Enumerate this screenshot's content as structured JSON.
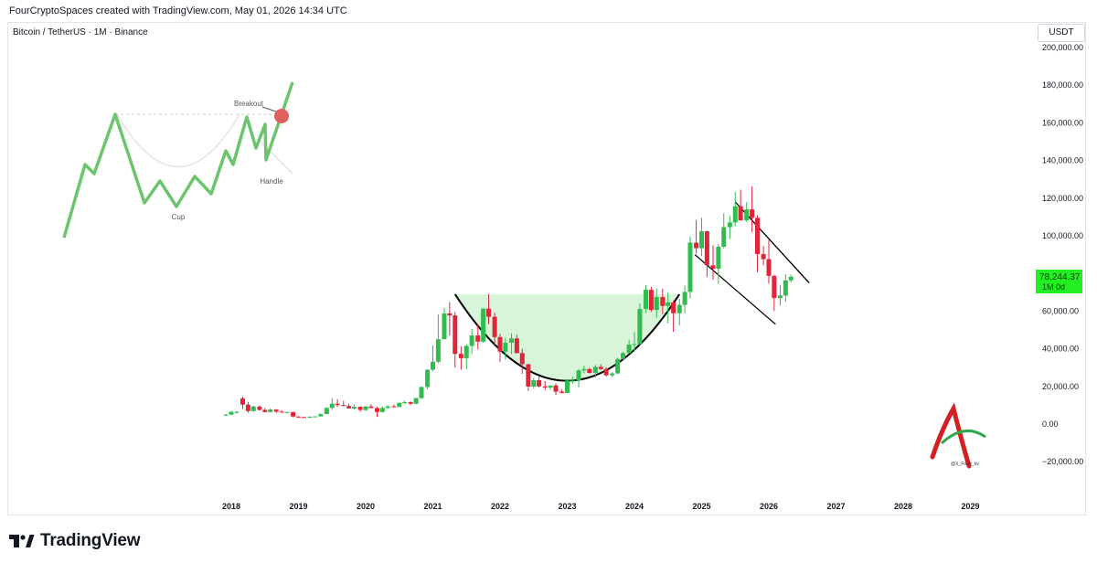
{
  "header": "FourCryptoSpaces created with TradingView.com, May 01, 2026 14:34 UTC",
  "symbol": "Bitcoin / TetherUS · 1M · Binance",
  "currency": "USDT",
  "price_tag": {
    "price": "78,244.37",
    "interval": "1M 0d",
    "color": "#22ee22"
  },
  "brand": {
    "name": "TradingView",
    "icon": "tradingview-logo-icon"
  },
  "watermark": {
    "text": "@X_Fourr_kv",
    "icon": "monogram-logo-icon"
  },
  "colors": {
    "up": "#2ebd4e",
    "down": "#e0243a",
    "cup_fill": "#d9f5d9",
    "inset_line": "#6cc46c",
    "breakout_dot": "#e06060"
  },
  "inset": {
    "breakout": "Breakout",
    "handle": "Handle",
    "cup": "Cup"
  },
  "chart_data": {
    "type": "candlestick",
    "title": "Bitcoin / TetherUS · 1M · Binance",
    "x_axis": {
      "ticks": [
        "2018",
        "2019",
        "2020",
        "2021",
        "2022",
        "2023",
        "2024",
        "2025",
        "2026",
        "2027",
        "2028",
        "2029"
      ]
    },
    "y_axis": {
      "ticks": [
        "200,000.00",
        "180,000.00",
        "160,000.00",
        "140,000.00",
        "120,000.00",
        "100,000.00",
        "80,000.00",
        "60,000.00",
        "40,000.00",
        "20,000.00",
        "0.00",
        "−20,000.00"
      ],
      "range": [
        -20000,
        200000
      ],
      "position": "right"
    },
    "grid": false,
    "series": [
      {
        "values": [
          [
            2017.92,
            4500,
            5500,
            4400,
            5000
          ],
          [
            2018.0,
            5000,
            7000,
            4800,
            6500
          ],
          [
            2018.08,
            6500,
            7000,
            5500,
            6500
          ],
          [
            2018.17,
            13700,
            14500,
            8000,
            10300
          ],
          [
            2018.25,
            10300,
            11800,
            6000,
            6900
          ],
          [
            2018.33,
            6900,
            9800,
            6500,
            9300
          ],
          [
            2018.42,
            9300,
            9900,
            7200,
            7500
          ],
          [
            2018.5,
            7500,
            8500,
            6100,
            6400
          ],
          [
            2018.58,
            6400,
            8300,
            6100,
            7700
          ],
          [
            2018.67,
            7700,
            8000,
            5900,
            6600
          ],
          [
            2018.75,
            6600,
            7400,
            6100,
            6300
          ],
          [
            2018.83,
            6300,
            6600,
            6200,
            6400
          ],
          [
            2018.92,
            6400,
            6500,
            3600,
            4000
          ],
          [
            2019.0,
            4000,
            4200,
            3200,
            3700
          ],
          [
            2019.08,
            3700,
            3900,
            3400,
            3400
          ],
          [
            2019.17,
            3400,
            4200,
            3400,
            3800
          ],
          [
            2019.25,
            3800,
            4100,
            3700,
            4100
          ],
          [
            2019.33,
            4100,
            5600,
            4000,
            5300
          ],
          [
            2019.42,
            5300,
            9000,
            5300,
            8600
          ],
          [
            2019.5,
            8600,
            13900,
            7500,
            10800
          ],
          [
            2019.58,
            10800,
            13200,
            9100,
            10100
          ],
          [
            2019.67,
            10100,
            12300,
            9400,
            9600
          ],
          [
            2019.75,
            9600,
            10900,
            8200,
            8300
          ],
          [
            2019.83,
            8300,
            10400,
            7700,
            9200
          ],
          [
            2019.92,
            9200,
            9400,
            6500,
            7500
          ],
          [
            2020.0,
            7500,
            9600,
            6900,
            9350
          ],
          [
            2020.08,
            9350,
            10500,
            8600,
            8500
          ],
          [
            2020.17,
            8500,
            9200,
            3800,
            6400
          ],
          [
            2020.25,
            6400,
            9400,
            6200,
            8600
          ],
          [
            2020.33,
            8600,
            10000,
            8100,
            9400
          ],
          [
            2020.42,
            9400,
            10400,
            8900,
            9100
          ],
          [
            2020.5,
            9100,
            11400,
            9000,
            11300
          ],
          [
            2020.58,
            11300,
            12400,
            10500,
            11650
          ],
          [
            2020.67,
            11650,
            12100,
            10000,
            10800
          ],
          [
            2020.75,
            10800,
            13900,
            10400,
            13800
          ],
          [
            2020.83,
            13800,
            19900,
            13200,
            19700
          ],
          [
            2020.92,
            19700,
            29000,
            18500,
            28900
          ],
          [
            2021.0,
            28900,
            41900,
            28100,
            33100
          ],
          [
            2021.08,
            33100,
            58300,
            32400,
            45100
          ],
          [
            2021.17,
            45100,
            61700,
            45000,
            58800
          ],
          [
            2021.25,
            58800,
            64800,
            47000,
            57700
          ],
          [
            2021.33,
            57700,
            59500,
            30000,
            37300
          ],
          [
            2021.42,
            37300,
            41300,
            28800,
            35000
          ],
          [
            2021.5,
            35000,
            42400,
            29300,
            41500
          ],
          [
            2021.58,
            41500,
            50500,
            37300,
            47100
          ],
          [
            2021.67,
            47100,
            52900,
            39600,
            43800
          ],
          [
            2021.75,
            43800,
            61500,
            43300,
            61300
          ],
          [
            2021.83,
            61300,
            69000,
            53000,
            57000
          ],
          [
            2021.92,
            57000,
            59100,
            42000,
            46200
          ],
          [
            2022.0,
            46200,
            47900,
            32900,
            38500
          ],
          [
            2022.08,
            38500,
            45800,
            34300,
            43200
          ],
          [
            2022.17,
            43200,
            48200,
            37200,
            45500
          ],
          [
            2022.25,
            45500,
            47400,
            37700,
            37700
          ],
          [
            2022.33,
            37700,
            40000,
            26700,
            31800
          ],
          [
            2022.42,
            31800,
            31900,
            17600,
            19900
          ],
          [
            2022.5,
            19900,
            24600,
            18800,
            23300
          ],
          [
            2022.58,
            23300,
            25200,
            19500,
            20000
          ],
          [
            2022.67,
            20000,
            22800,
            18100,
            19400
          ],
          [
            2022.75,
            19400,
            20500,
            18200,
            20500
          ],
          [
            2022.83,
            20500,
            21500,
            15500,
            17200
          ],
          [
            2022.92,
            17200,
            18400,
            16300,
            16500
          ],
          [
            2023.0,
            16500,
            23900,
            16500,
            23100
          ],
          [
            2023.08,
            23100,
            25200,
            21400,
            23100
          ],
          [
            2023.17,
            23100,
            29200,
            19500,
            28500
          ],
          [
            2023.25,
            28500,
            31000,
            26900,
            29200
          ],
          [
            2023.33,
            29200,
            29800,
            26800,
            27200
          ],
          [
            2023.42,
            27200,
            31400,
            24800,
            30400
          ],
          [
            2023.5,
            30400,
            31800,
            28900,
            29200
          ],
          [
            2023.58,
            29200,
            30200,
            25200,
            25900
          ],
          [
            2023.67,
            25900,
            27500,
            24900,
            26900
          ],
          [
            2023.75,
            26900,
            35200,
            26600,
            34600
          ],
          [
            2023.83,
            34600,
            38400,
            34100,
            37700
          ],
          [
            2023.92,
            37700,
            44700,
            37600,
            42200
          ],
          [
            2024.0,
            42200,
            48900,
            38500,
            42500
          ],
          [
            2024.08,
            42500,
            64000,
            41800,
            61100
          ],
          [
            2024.17,
            61100,
            73800,
            59000,
            71300
          ],
          [
            2024.25,
            71300,
            72800,
            59600,
            60600
          ],
          [
            2024.33,
            60600,
            72000,
            56500,
            67500
          ],
          [
            2024.42,
            67500,
            71900,
            58400,
            62700
          ],
          [
            2024.5,
            62700,
            70000,
            53500,
            64600
          ],
          [
            2024.58,
            64600,
            65600,
            49000,
            58900
          ],
          [
            2024.67,
            58900,
            66500,
            52500,
            63300
          ],
          [
            2024.75,
            63300,
            73600,
            58800,
            70200
          ],
          [
            2024.83,
            70200,
            99600,
            66800,
            96400
          ],
          [
            2024.92,
            96400,
            108300,
            90500,
            93400
          ],
          [
            2025.0,
            93400,
            109600,
            89200,
            102400
          ],
          [
            2025.08,
            102400,
            102700,
            78200,
            84300
          ],
          [
            2025.17,
            84300,
            95000,
            76600,
            82500
          ],
          [
            2025.25,
            82500,
            95800,
            74500,
            94200
          ],
          [
            2025.33,
            94200,
            111900,
            93300,
            104600
          ],
          [
            2025.42,
            104600,
            110500,
            98200,
            107100
          ],
          [
            2025.5,
            107100,
            123200,
            105100,
            115700
          ],
          [
            2025.58,
            115700,
            124500,
            108700,
            108200
          ],
          [
            2025.67,
            108200,
            117900,
            107300,
            114000
          ],
          [
            2025.75,
            114000,
            126200,
            102000,
            109500
          ],
          [
            2025.83,
            109500,
            111000,
            80600,
            90300
          ],
          [
            2025.92,
            90300,
            94600,
            84400,
            87600
          ],
          [
            2026.0,
            87600,
            97900,
            74600,
            78700
          ],
          [
            2026.08,
            78700,
            79300,
            60000,
            66900
          ],
          [
            2026.17,
            66900,
            74000,
            63000,
            68300
          ],
          [
            2026.25,
            68300,
            79500,
            65000,
            76300
          ],
          [
            2026.33,
            76300,
            79400,
            75200,
            78244
          ]
        ]
      }
    ]
  }
}
